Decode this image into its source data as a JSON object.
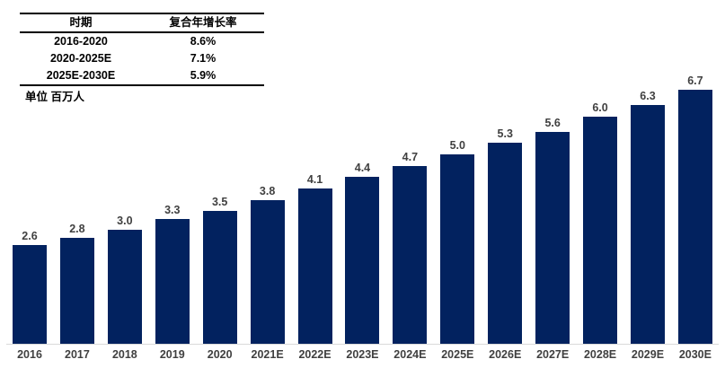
{
  "table": {
    "headers": [
      "时期",
      "复合年增长率"
    ],
    "rows": [
      {
        "period": "2016-2020",
        "cagr": "8.6%"
      },
      {
        "period": "2020-2025E",
        "cagr": "7.1%"
      },
      {
        "period": "2025E-2030E",
        "cagr": "5.9%"
      }
    ]
  },
  "unit_label": "单位 百万人",
  "colors": {
    "bar": "#02225f",
    "data_label": "#404040",
    "axis_label": "#404040",
    "baseline": "#d9d9d9",
    "table_text": "#000000"
  },
  "chart_data": {
    "type": "bar",
    "categories": [
      "2016",
      "2017",
      "2018",
      "2019",
      "2020",
      "2021E",
      "2022E",
      "2023E",
      "2024E",
      "2025E",
      "2026E",
      "2027E",
      "2028E",
      "2029E",
      "2030E"
    ],
    "values": [
      2.6,
      2.8,
      3.0,
      3.3,
      3.5,
      3.8,
      4.1,
      4.4,
      4.7,
      5.0,
      5.3,
      5.6,
      6.0,
      6.3,
      6.7
    ],
    "title": "",
    "subtitle": "",
    "xlabel": "",
    "ylabel": "单位 百万人",
    "ylim": [
      0,
      7
    ],
    "grid": false,
    "legend": false,
    "data_labels": true,
    "bar_color": "#02225f",
    "annotations": [
      {
        "label": "2016-2020 复合年增长率",
        "value": "8.6%"
      },
      {
        "label": "2020-2025E 复合年增长率",
        "value": "7.1%"
      },
      {
        "label": "2025E-2030E 复合年增长率",
        "value": "5.9%"
      }
    ]
  }
}
